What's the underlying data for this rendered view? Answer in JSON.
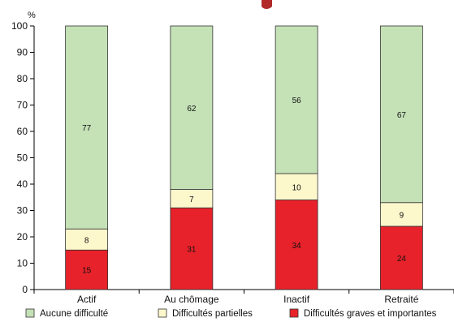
{
  "chart_data": {
    "type": "bar",
    "stacked": true,
    "y_unit": "%",
    "ylim": [
      0,
      100
    ],
    "yticks": [
      0,
      10,
      20,
      30,
      40,
      50,
      60,
      70,
      80,
      90,
      100
    ],
    "categories": [
      "Actif",
      "Au chômage",
      "Inactif",
      "Retraité"
    ],
    "series": [
      {
        "name": "Difficultés graves et importantes",
        "color": "#e8222a",
        "values": [
          15,
          31,
          34,
          24
        ]
      },
      {
        "name": "Difficultés partielles",
        "color": "#fdf7cc",
        "values": [
          8,
          7,
          10,
          9
        ]
      },
      {
        "name": "Aucune difficulté",
        "color": "#c5e2b7",
        "values": [
          77,
          62,
          56,
          67
        ]
      }
    ],
    "legend_order": [
      2,
      1,
      0
    ],
    "legend_position": "bottom",
    "grid": false
  }
}
